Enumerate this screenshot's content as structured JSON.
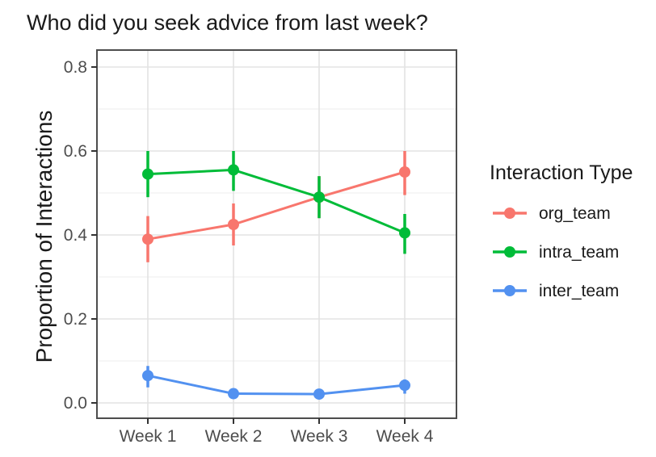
{
  "chart_data": {
    "type": "line",
    "title": "Who did you seek advice from last week?",
    "xlabel": "",
    "ylabel": "Proportion of Interactions",
    "x_type": "categorical",
    "categories": [
      "Week 1",
      "Week 2",
      "Week 3",
      "Week 4"
    ],
    "y_ticks": [
      0.0,
      0.2,
      0.4,
      0.6,
      0.8
    ],
    "y_tick_labels": [
      "0.0",
      "0.2",
      "0.4",
      "0.6",
      "0.8"
    ],
    "y_minor_gridlines": [
      0.1,
      0.3,
      0.5,
      0.7
    ],
    "ylim": [
      -0.037,
      0.84
    ],
    "grid": true,
    "error_bars": true,
    "legend": {
      "title": "Interaction Type",
      "position": "right"
    },
    "series": [
      {
        "name": "org_team",
        "color": "#F8766D",
        "values": [
          0.39,
          0.425,
          0.49,
          0.55
        ],
        "ci_low": [
          0.335,
          0.375,
          0.44,
          0.495
        ],
        "ci_high": [
          0.445,
          0.475,
          0.54,
          0.6
        ]
      },
      {
        "name": "intra_team",
        "color": "#00BC38",
        "values": [
          0.545,
          0.555,
          0.49,
          0.405
        ],
        "ci_low": [
          0.49,
          0.505,
          0.44,
          0.355
        ],
        "ci_high": [
          0.6,
          0.6,
          0.54,
          0.45
        ]
      },
      {
        "name": "inter_team",
        "color": "#5291F0",
        "values": [
          0.065,
          0.022,
          0.021,
          0.042
        ],
        "ci_low": [
          0.037,
          0.012,
          0.012,
          0.022
        ],
        "ci_high": [
          0.088,
          0.033,
          0.03,
          0.056
        ]
      }
    ]
  },
  "colors": {
    "panel_border": "#4D4D4D",
    "grid_major": "#E3E3E3",
    "grid_minor": "#F0F0F0",
    "tick_mark": "#333333",
    "tick_label": "#4D4D4D",
    "text": "#1A1A1A",
    "background": "#FFFFFF"
  }
}
